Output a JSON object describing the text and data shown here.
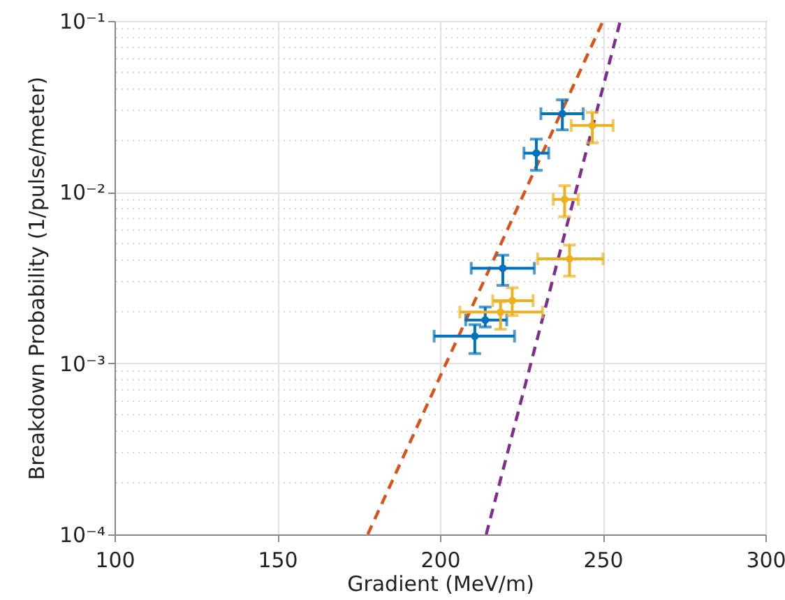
{
  "chart_data": {
    "type": "scatter",
    "xlabel": "Gradient (MeV/m)",
    "ylabel": "Breakdown Probability (1/pulse/meter)",
    "log": "y",
    "grid": true,
    "marker": "circle",
    "xlim": [
      100,
      300
    ],
    "xticks": [
      100,
      150,
      200,
      250,
      300
    ],
    "ylim": [
      0.0001,
      0.1
    ],
    "yticks": [
      {
        "value": 0.0001,
        "label": "10⁻⁴"
      },
      {
        "value": 0.001,
        "label": "10⁻³"
      },
      {
        "value": 0.01,
        "label": "10⁻²"
      },
      {
        "value": 0.1,
        "label": "10⁻¹"
      }
    ],
    "series": [
      {
        "type": "line",
        "color": "#d95319",
        "line_style": "dashed",
        "marker": "none",
        "x": [
          177.8,
          250.1
        ],
        "values": [
          0.0001,
          0.1
        ]
      },
      {
        "type": "line",
        "color": "#7e2f8e",
        "line_style": "dashed",
        "marker": "none",
        "x": [
          214.2,
          255.4
        ],
        "values": [
          0.0001,
          0.1
        ]
      },
      {
        "color": "#0072bd",
        "x": [
          237.6,
          229.6,
          219.3,
          213.9,
          210.7
        ],
        "values": [
          0.0287,
          0.0169,
          0.00359,
          0.00179,
          0.00144
        ],
        "xerrors": [
          [
            231.0,
            244.0
          ],
          [
            225.8,
            233.4
          ],
          [
            209.6,
            229.0
          ],
          [
            207.9,
            220.5
          ],
          [
            198.2,
            222.9
          ]
        ],
        "errors": [
          [
            0.0231,
            0.0346
          ],
          [
            0.0134,
            0.0204
          ],
          [
            0.00285,
            0.00428
          ],
          [
            0.00163,
            0.00213
          ],
          [
            0.00114,
            0.00168
          ]
        ]
      },
      {
        "color": "#edb120",
        "x": [
          246.8,
          238.3,
          239.8,
          222.2,
          218.6
        ],
        "values": [
          0.0245,
          0.00906,
          0.00407,
          0.00232,
          0.00199
        ],
        "xerrors": [
          [
            240.3,
            253.2
          ],
          [
            234.8,
            242.5
          ],
          [
            230.0,
            250.1
          ],
          [
            216.2,
            228.6
          ],
          [
            206.1,
            231.5
          ]
        ],
        "errors": [
          [
            0.0194,
            0.0292
          ],
          [
            0.00718,
            0.0109
          ],
          [
            0.00323,
            0.0049
          ],
          [
            0.0019,
            0.00276
          ],
          [
            0.00158,
            0.00229
          ]
        ]
      }
    ]
  }
}
